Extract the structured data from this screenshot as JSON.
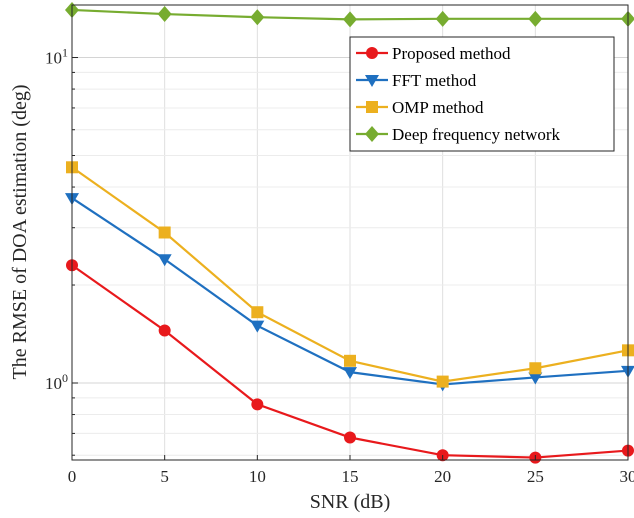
{
  "chart_data": {
    "type": "line",
    "xlabel": "SNR (dB)",
    "ylabel": "The RMSE of DOA estimation (deg)",
    "y_scale": "log",
    "xlim": [
      0,
      30
    ],
    "ylim": [
      0.58,
      14.5
    ],
    "grid": true,
    "legend_position": "top-right",
    "x": [
      0,
      5,
      10,
      15,
      20,
      25,
      30
    ],
    "x_ticks": [
      "0",
      "5",
      "10",
      "15",
      "20",
      "25",
      "30"
    ],
    "y_ticks": [
      {
        "value": 1,
        "label_base": "10",
        "label_exp": "0"
      },
      {
        "value": 10,
        "label_base": "10",
        "label_exp": "1"
      }
    ],
    "series": [
      {
        "name": "Proposed method",
        "color": "#e8191c",
        "marker": "circle",
        "values": [
          2.3,
          1.45,
          0.86,
          0.68,
          0.6,
          0.59,
          0.62
        ]
      },
      {
        "name": "FFT method",
        "color": "#1f70c0",
        "marker": "triangle-down",
        "values": [
          3.7,
          2.4,
          1.5,
          1.08,
          0.99,
          1.04,
          1.09
        ]
      },
      {
        "name": "OMP method",
        "color": "#ecb01f",
        "marker": "square",
        "values": [
          4.6,
          2.9,
          1.65,
          1.17,
          1.01,
          1.11,
          1.26
        ]
      },
      {
        "name": "Deep frequency network",
        "color": "#77ac30",
        "marker": "diamond",
        "values": [
          14.0,
          13.6,
          13.3,
          13.1,
          13.15,
          13.15,
          13.15
        ]
      }
    ]
  }
}
